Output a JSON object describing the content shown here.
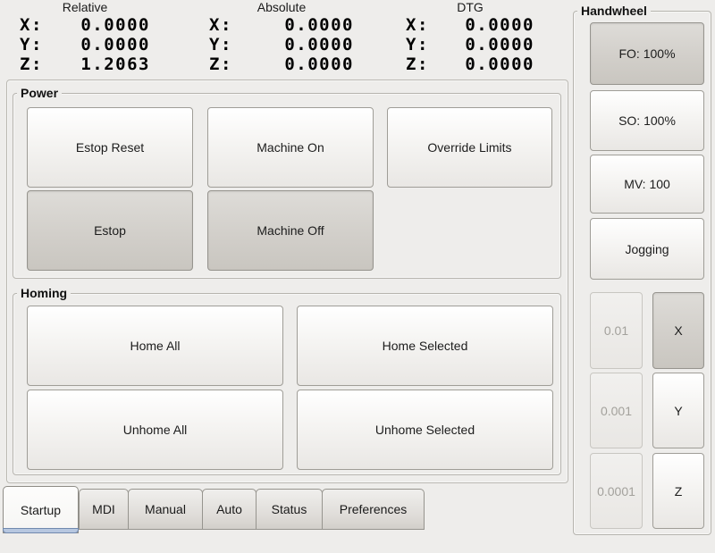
{
  "dro": {
    "columns": [
      {
        "title": "Relative",
        "rows": [
          {
            "label": "X:",
            "value": "0.0000"
          },
          {
            "label": "Y:",
            "value": "0.0000"
          },
          {
            "label": "Z:",
            "value": "1.2063"
          }
        ]
      },
      {
        "title": "Absolute",
        "rows": [
          {
            "label": "X:",
            "value": "0.0000"
          },
          {
            "label": "Y:",
            "value": "0.0000"
          },
          {
            "label": "Z:",
            "value": "0.0000"
          }
        ]
      },
      {
        "title": "DTG",
        "rows": [
          {
            "label": "X:",
            "value": "0.0000"
          },
          {
            "label": "Y:",
            "value": "0.0000"
          },
          {
            "label": "Z:",
            "value": "0.0000"
          }
        ]
      }
    ]
  },
  "power": {
    "title": "Power",
    "estop_reset": "Estop Reset",
    "machine_on": "Machine On",
    "override_limits": "Override Limits",
    "estop": "Estop",
    "machine_off": "Machine Off"
  },
  "homing": {
    "title": "Homing",
    "home_all": "Home All",
    "home_selected": "Home Selected",
    "unhome_all": "Unhome All",
    "unhome_selected": "Unhome Selected"
  },
  "handwheel": {
    "title": "Handwheel",
    "feed_override": "FO: 100%",
    "spindle_override": "SO: 100%",
    "max_velocity": "MV: 100",
    "jogging": "Jogging",
    "increments": [
      "0.01",
      "0.001",
      "0.0001"
    ],
    "axes": [
      "X",
      "Y",
      "Z"
    ]
  },
  "tabs": {
    "items": [
      "Startup",
      "MDI",
      "Manual",
      "Auto",
      "Status",
      "Preferences"
    ],
    "active": "Startup"
  },
  "colors": {
    "background": "#eeedeb",
    "pressed_button": "#d2cfca",
    "active_tab_accent": "#b7c7e0",
    "active_tab_accent_border": "#7189ae"
  }
}
